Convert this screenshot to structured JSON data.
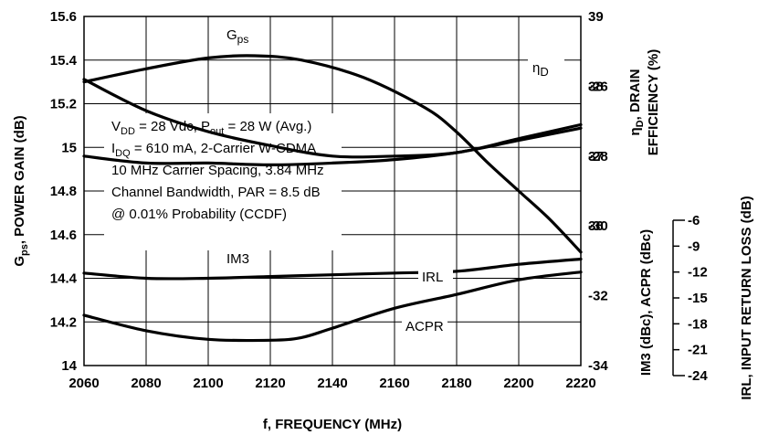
{
  "chart_data": {
    "type": "line",
    "xlabel": "f, FREQUENCY (MHz)",
    "x_ticks": [
      "2060",
      "2080",
      "2100",
      "2120",
      "2140",
      "2160",
      "2180",
      "2200",
      "2220"
    ],
    "xlim": [
      2060,
      2220
    ],
    "left_axis": {
      "label": "G",
      "label_sub": "ps",
      "label_rest": ", POWER GAIN (dB)",
      "ticks": [
        "15.6",
        "15.4",
        "15.2",
        "15",
        "14.8",
        "14.6",
        "14.4",
        "14.2",
        "14"
      ],
      "ylim": [
        14,
        15.6
      ]
    },
    "right_axis_eff": {
      "label_greek": "η",
      "label_sub": "D",
      "label_line1_rest": ", DRAIN",
      "label_line2": "EFFICIENCY (%)",
      "ticks": [
        "39",
        "38",
        "37",
        "36"
      ],
      "ylim": [
        34,
        39
      ]
    },
    "right_axis_im3": {
      "label": "IM3 (dBc), ACPR (dBc)",
      "ticks": [
        "-26",
        "-28",
        "-30",
        "-32",
        "-34"
      ],
      "ylim": [
        -34,
        -24
      ]
    },
    "right_axis_irl": {
      "label": "IRL, INPUT RETURN LOSS (dB)",
      "ticks": [
        "-6",
        "-9",
        "-12",
        "-15",
        "-18",
        "-21",
        "-24"
      ],
      "ylim": [
        -24,
        -6
      ]
    },
    "series": [
      {
        "name": "Gps",
        "axis": "left",
        "label_main": "G",
        "label_sub": "ps",
        "x": [
          2060,
          2080,
          2100,
          2115,
          2130,
          2150,
          2170,
          2180,
          2190,
          2200,
          2210,
          2220
        ],
        "y": [
          15.3,
          15.36,
          15.41,
          15.42,
          15.4,
          15.32,
          15.18,
          15.07,
          14.93,
          14.8,
          14.67,
          14.52
        ]
      },
      {
        "name": "ηD",
        "axis": "eff",
        "label_main": "η",
        "label_sub": "D",
        "x": [
          2060,
          2080,
          2100,
          2120,
          2140,
          2160,
          2180,
          2200,
          2220
        ],
        "y": [
          38.1,
          37.65,
          37.35,
          37.15,
          37.0,
          37.0,
          37.05,
          37.25,
          37.45
        ]
      },
      {
        "name": "IM3",
        "axis": "im3",
        "x": [
          2060,
          2080,
          2100,
          2120,
          2140,
          2160,
          2180,
          2200,
          2220
        ],
        "y": [
          -28.0,
          -28.2,
          -28.2,
          -28.25,
          -28.2,
          -28.1,
          -27.9,
          -27.55,
          -27.2
        ]
      },
      {
        "name": "IRL",
        "axis": "irl",
        "x": [
          2060,
          2080,
          2100,
          2120,
          2130,
          2140,
          2160,
          2180,
          2200,
          2220
        ],
        "y": [
          -17.0,
          -18.8,
          -19.8,
          -19.9,
          -19.6,
          -18.5,
          -16.2,
          -14.6,
          -12.9,
          -12.0
        ]
      },
      {
        "name": "ACPR",
        "axis": "im3",
        "x": [
          2060,
          2080,
          2100,
          2120,
          2140,
          2160,
          2180,
          2200,
          2220
        ],
        "y": [
          -31.35,
          -31.5,
          -31.5,
          -31.45,
          -31.4,
          -31.35,
          -31.3,
          -31.1,
          -30.95
        ]
      }
    ],
    "annotation_lines": [
      {
        "parts": [
          {
            "t": "V"
          },
          {
            "t": "DD",
            "sub": true
          },
          {
            "t": " = 28 Vdc, P"
          },
          {
            "t": "out",
            "sub": true
          },
          {
            "t": " = 28 W (Avg.)"
          }
        ]
      },
      {
        "parts": [
          {
            "t": "I"
          },
          {
            "t": "DQ",
            "sub": true
          },
          {
            "t": " = 610 mA, 2-Carrier  W-CDMA"
          }
        ]
      },
      {
        "parts": [
          {
            "t": "10 MHz Carrier Spacing, 3.84 MHz"
          }
        ]
      },
      {
        "parts": [
          {
            "t": "Channel Bandwidth, PAR = 8.5 dB"
          }
        ]
      },
      {
        "parts": [
          {
            "t": "@ 0.01% Probability (CCDF)"
          }
        ]
      }
    ],
    "grid": true
  }
}
